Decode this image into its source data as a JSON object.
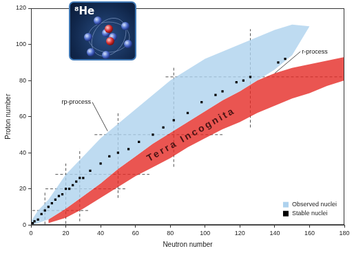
{
  "chart_data": {
    "type": "line",
    "x_label": "Neutron number",
    "y_label": "Proton number",
    "xlim": [
      0,
      180
    ],
    "xticks": [
      0,
      20,
      40,
      60,
      80,
      100,
      120,
      140,
      160,
      180
    ],
    "ylim": [
      0,
      120
    ],
    "yticks": [
      0,
      20,
      40,
      60,
      80,
      100,
      120
    ],
    "grid": false,
    "legend": "lower right",
    "bands": [
      {
        "color": "#e52a26",
        "x": [
          10,
          20,
          30,
          40,
          50,
          60,
          70,
          80,
          90,
          100,
          110,
          120,
          130,
          140,
          150,
          160,
          170,
          180
        ],
        "lower": [
          1,
          4,
          9,
          15,
          21,
          27,
          32,
          37,
          43,
          48,
          53,
          57,
          62,
          66,
          70,
          73,
          77,
          80
        ],
        "upper": [
          3,
          9,
          16,
          23,
          31,
          38,
          45,
          51,
          57,
          63,
          69,
          74,
          80,
          84,
          87,
          89,
          91,
          93
        ]
      },
      {
        "name": "Observed nuclei",
        "color": "#aed2ee",
        "x": [
          0,
          4,
          10,
          20,
          30,
          40,
          50,
          60,
          70,
          80,
          90,
          100,
          110,
          120,
          130,
          140,
          150,
          160
        ],
        "lower": [
          0,
          1,
          3,
          9,
          16,
          23,
          31,
          38,
          45,
          51,
          57,
          63,
          69,
          74,
          80,
          86,
          94,
          110
        ],
        "upper": [
          2,
          8,
          14,
          28,
          38,
          48,
          56,
          64,
          72,
          80,
          86,
          92,
          96,
          100,
          104,
          108,
          111,
          110
        ]
      }
    ],
    "series": [
      {
        "name": "Stable nuclei",
        "color": "#000000",
        "marker": "square",
        "x": [
          1,
          2,
          4,
          6,
          8,
          10,
          12,
          14,
          16,
          18,
          20,
          22,
          24,
          26,
          28,
          30,
          34,
          40,
          45,
          50,
          56,
          62,
          70,
          76,
          82,
          90,
          98,
          106,
          110,
          118,
          122,
          126,
          142,
          146
        ],
        "values": [
          1,
          2,
          3,
          6,
          8,
          10,
          12,
          14,
          16,
          17,
          20,
          20,
          22,
          24,
          26,
          26,
          30,
          34,
          38,
          40,
          42,
          46,
          50,
          54,
          58,
          62,
          68,
          72,
          74,
          79,
          80,
          82,
          90,
          92
        ]
      }
    ],
    "magic_numbers": [
      8,
      20,
      28,
      50,
      82,
      126
    ],
    "annotations": [
      {
        "text": "rp-process",
        "x": 26,
        "y": 68,
        "target": [
          44,
          52
        ]
      },
      {
        "text": "r-process",
        "x": 163,
        "y": 96,
        "target": [
          140,
          84
        ]
      },
      {
        "text": "Terra Incognita",
        "x": 92,
        "y": 50
      }
    ],
    "inset": {
      "text": "⁸He"
    }
  }
}
